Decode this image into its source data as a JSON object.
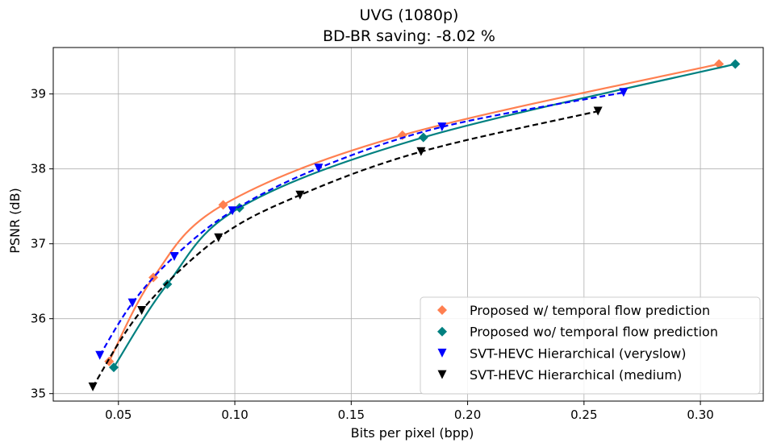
{
  "chart_data": {
    "type": "line",
    "title": "UVG (1080p)",
    "subtitle": "BD-BR saving: -8.02 %",
    "xlabel": "Bits per pixel (bpp)",
    "ylabel": "PSNR (dB)",
    "xlim": [
      0.022,
      0.327
    ],
    "ylim": [
      34.9,
      39.62
    ],
    "xticks": [
      0.05,
      0.1,
      0.15,
      0.2,
      0.25,
      0.3
    ],
    "xtick_labels": [
      "0.05",
      "0.10",
      "0.15",
      "0.20",
      "0.25",
      "0.30"
    ],
    "yticks": [
      35,
      36,
      37,
      38,
      39
    ],
    "ytick_labels": [
      "35",
      "36",
      "37",
      "38",
      "39"
    ],
    "grid": true,
    "legend_position": "lower-right",
    "series": [
      {
        "name": "Proposed w/ temporal flow prediction",
        "color": "#ff7f50",
        "marker": "diamond",
        "line_style": "solid",
        "x": [
          0.046,
          0.065,
          0.095,
          0.172,
          0.308
        ],
        "y": [
          35.43,
          36.55,
          37.52,
          38.45,
          39.4
        ]
      },
      {
        "name": "Proposed wo/ temporal flow prediction",
        "color": "#008080",
        "marker": "diamond",
        "line_style": "solid",
        "x": [
          0.048,
          0.071,
          0.102,
          0.181,
          0.315
        ],
        "y": [
          35.35,
          36.46,
          37.48,
          38.42,
          39.4
        ]
      },
      {
        "name": "SVT-HEVC Hierarchical (veryslow)",
        "color": "#0000ff",
        "marker": "triangle-down",
        "line_style": "dashed",
        "x": [
          0.042,
          0.056,
          0.074,
          0.099,
          0.136,
          0.189,
          0.267
        ],
        "y": [
          35.51,
          36.21,
          36.83,
          37.44,
          38.01,
          38.56,
          39.02
        ]
      },
      {
        "name": "SVT-HEVC Hierarchical (medium)",
        "color": "#000000",
        "marker": "triangle-down",
        "line_style": "dashed",
        "x": [
          0.039,
          0.06,
          0.093,
          0.128,
          0.18,
          0.256
        ],
        "y": [
          35.09,
          36.11,
          37.08,
          37.65,
          38.23,
          38.77
        ]
      }
    ]
  }
}
